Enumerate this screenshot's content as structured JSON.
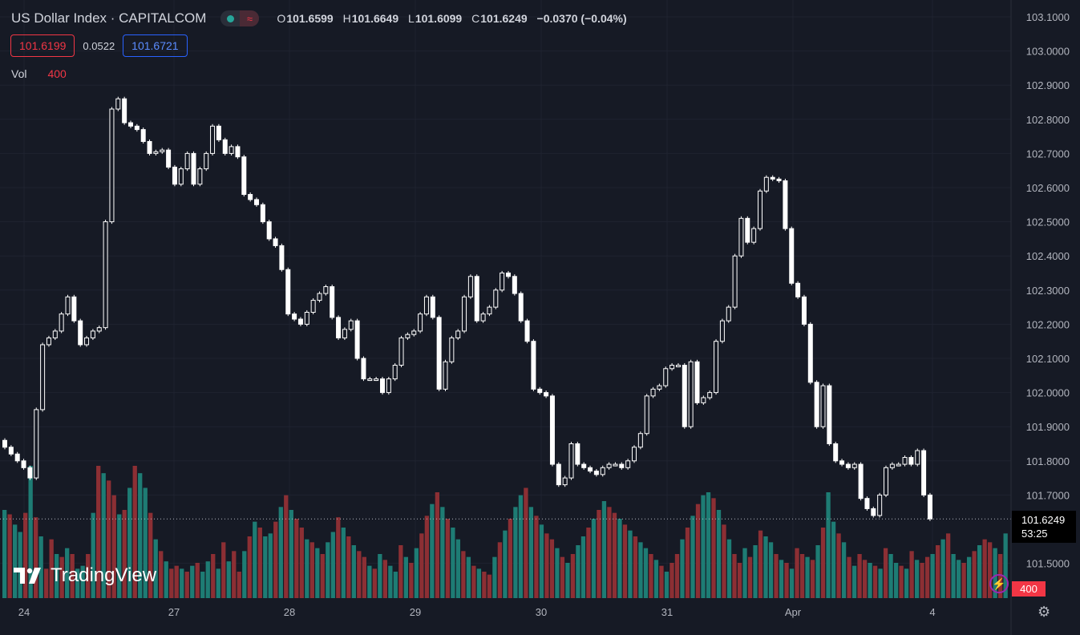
{
  "header": {
    "symbol": "US Dollar Index · CAPITALCOM",
    "status_icon": "market-open-dot-icon",
    "indicator_icon": "wave-icon",
    "ohlc": {
      "o_label": "O",
      "o": "101.6599",
      "h_label": "H",
      "h": "101.6649",
      "l_label": "L",
      "l": "101.6099",
      "c_label": "C",
      "c": "101.6249",
      "change": "−0.0370 (−0.04%)"
    }
  },
  "quotes": {
    "bid": "101.6199",
    "spread": "0.0522",
    "ask": "101.6721"
  },
  "volume": {
    "label": "Vol",
    "value": "400"
  },
  "brand": {
    "name": "TradingView"
  },
  "price_tag": {
    "price": "101.6249",
    "countdown": "53:25"
  },
  "volume_tag": "400",
  "colors": {
    "background": "#161a25",
    "candle": "#ffffff",
    "vol_up": "#26a69a",
    "vol_down": "#f23645"
  },
  "chart_data": {
    "type": "candlestick",
    "x_ticks": [
      "24",
      "27",
      "28",
      "29",
      "30",
      "31",
      "Apr",
      "4"
    ],
    "y_ticks": [
      "103.1000",
      "103.0000",
      "102.9000",
      "102.8000",
      "102.7000",
      "102.6000",
      "102.5000",
      "102.4000",
      "102.3000",
      "102.2000",
      "102.1000",
      "102.0000",
      "101.9000",
      "101.8000",
      "101.7000",
      "101.5000"
    ],
    "ylim": [
      101.4,
      103.13
    ],
    "close_path": [
      [
        0,
        101.84
      ],
      [
        3,
        101.78
      ],
      [
        4,
        101.75
      ],
      [
        5,
        101.95
      ],
      [
        6,
        102.14
      ],
      [
        8,
        102.18
      ],
      [
        10,
        102.28
      ],
      [
        12,
        102.14
      ],
      [
        14,
        102.18
      ],
      [
        15,
        102.19
      ],
      [
        16,
        102.5
      ],
      [
        17,
        102.83
      ],
      [
        18,
        102.86
      ],
      [
        19,
        102.79
      ],
      [
        21,
        102.77
      ],
      [
        23,
        102.7
      ],
      [
        25,
        102.71
      ],
      [
        27,
        102.61
      ],
      [
        29,
        102.7
      ],
      [
        30,
        102.61
      ],
      [
        32,
        102.7
      ],
      [
        33,
        102.78
      ],
      [
        35,
        102.7
      ],
      [
        36,
        102.72
      ],
      [
        37,
        102.69
      ],
      [
        38,
        102.58
      ],
      [
        40,
        102.55
      ],
      [
        42,
        102.45
      ],
      [
        43,
        102.43
      ],
      [
        44,
        102.36
      ],
      [
        45,
        102.23
      ],
      [
        47,
        102.2
      ],
      [
        49,
        102.27
      ],
      [
        51,
        102.31
      ],
      [
        52,
        102.22
      ],
      [
        53,
        102.16
      ],
      [
        55,
        102.21
      ],
      [
        56,
        102.1
      ],
      [
        57,
        102.04
      ],
      [
        59,
        102.04
      ],
      [
        60,
        102.0
      ],
      [
        61,
        102.04
      ],
      [
        62,
        102.08
      ],
      [
        63,
        102.16
      ],
      [
        65,
        102.18
      ],
      [
        66,
        102.23
      ],
      [
        67,
        102.28
      ],
      [
        68,
        102.22
      ],
      [
        69,
        102.01
      ],
      [
        70,
        102.09
      ],
      [
        71,
        102.16
      ],
      [
        72,
        102.18
      ],
      [
        73,
        102.28
      ],
      [
        74,
        102.34
      ],
      [
        75,
        102.21
      ],
      [
        77,
        102.25
      ],
      [
        78,
        102.3
      ],
      [
        79,
        102.35
      ],
      [
        80,
        102.34
      ],
      [
        81,
        102.29
      ],
      [
        82,
        102.21
      ],
      [
        83,
        102.15
      ],
      [
        84,
        102.01
      ],
      [
        86,
        101.99
      ],
      [
        87,
        101.79
      ],
      [
        88,
        101.73
      ],
      [
        89,
        101.75
      ],
      [
        90,
        101.85
      ],
      [
        91,
        101.79
      ],
      [
        92,
        101.78
      ],
      [
        94,
        101.76
      ],
      [
        95,
        101.78
      ],
      [
        96,
        101.79
      ],
      [
        97,
        101.79
      ],
      [
        98,
        101.78
      ],
      [
        99,
        101.8
      ],
      [
        100,
        101.84
      ],
      [
        101,
        101.88
      ],
      [
        102,
        101.99
      ],
      [
        103,
        102.01
      ],
      [
        104,
        102.02
      ],
      [
        105,
        102.07
      ],
      [
        106,
        102.08
      ],
      [
        107,
        102.08
      ],
      [
        108,
        101.9
      ],
      [
        109,
        102.09
      ],
      [
        110,
        101.97
      ],
      [
        112,
        102.0
      ],
      [
        113,
        102.15
      ],
      [
        114,
        102.21
      ],
      [
        115,
        102.25
      ],
      [
        116,
        102.4
      ],
      [
        117,
        102.51
      ],
      [
        118,
        102.44
      ],
      [
        119,
        102.48
      ],
      [
        120,
        102.59
      ],
      [
        121,
        102.63
      ],
      [
        123,
        102.62
      ],
      [
        124,
        102.48
      ],
      [
        125,
        102.32
      ],
      [
        126,
        102.28
      ],
      [
        127,
        102.2
      ],
      [
        128,
        102.03
      ],
      [
        129,
        101.9
      ],
      [
        130,
        102.02
      ],
      [
        131,
        101.85
      ],
      [
        132,
        101.8
      ],
      [
        133,
        101.79
      ],
      [
        134,
        101.78
      ],
      [
        135,
        101.79
      ],
      [
        136,
        101.69
      ],
      [
        137,
        101.66
      ],
      [
        138,
        101.64
      ],
      [
        139,
        101.7
      ],
      [
        140,
        101.78
      ],
      [
        141,
        101.79
      ],
      [
        142,
        101.79
      ],
      [
        143,
        101.81
      ],
      [
        144,
        101.79
      ],
      [
        145,
        101.83
      ],
      [
        146,
        101.7
      ],
      [
        147,
        101.63
      ]
    ],
    "volume_profile": [
      60,
      57,
      50,
      45,
      58,
      90,
      55,
      42,
      20,
      40,
      30,
      28,
      34,
      30,
      20,
      22,
      30,
      58,
      90,
      85,
      80,
      70,
      57,
      60,
      75,
      90,
      85,
      75,
      58,
      40,
      32,
      25,
      20,
      22,
      20,
      18,
      22,
      24,
      18,
      25,
      30,
      20,
      38,
      25,
      32,
      18,
      32,
      42,
      52,
      48,
      42,
      44,
      52,
      62,
      70,
      60,
      54,
      48,
      40,
      38,
      34,
      30,
      38,
      45,
      55,
      48,
      42,
      36,
      32,
      28,
      22,
      20,
      30,
      26,
      22,
      18,
      36,
      28,
      24,
      34,
      44,
      56,
      64,
      72,
      62,
      54,
      48,
      40,
      32,
      28,
      22,
      20,
      18,
      16,
      28,
      38,
      46,
      54,
      62,
      70,
      75,
      62,
      56,
      50,
      44,
      40,
      34,
      28,
      24,
      30,
      36,
      42,
      48,
      54,
      60,
      66,
      62,
      58,
      54,
      50,
      46,
      42,
      38,
      34,
      30,
      26,
      22,
      18,
      24,
      30,
      40,
      48,
      56,
      64,
      70,
      72,
      68,
      60,
      50,
      40,
      30,
      24,
      34,
      28,
      36,
      46,
      42,
      38,
      30,
      26,
      24,
      20,
      34,
      30,
      28,
      26,
      36,
      48,
      72,
      52,
      44,
      38,
      28,
      22,
      30,
      26,
      24,
      22,
      20,
      34,
      30,
      24,
      22,
      20,
      32,
      26,
      24,
      28,
      30,
      36,
      40,
      44,
      30,
      26,
      24,
      28,
      32,
      36,
      40,
      38,
      34,
      30,
      44
    ],
    "volume_max_value": 400
  }
}
